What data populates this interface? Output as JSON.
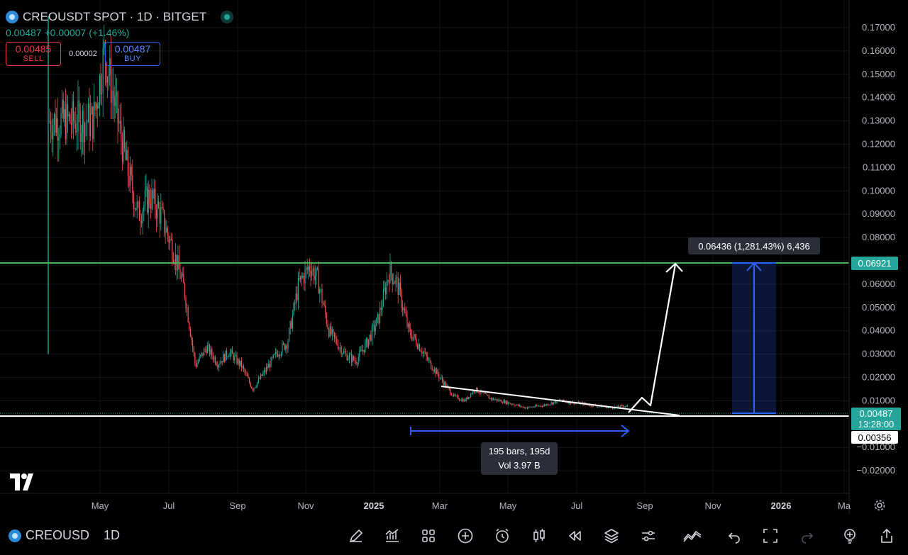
{
  "header": {
    "title": "CREOUSDT SPOT · 1D · BITGET",
    "last_price": "0.00487",
    "change": "+0.00007",
    "change_pct": "(+1.46%)",
    "sell_price": "0.00485",
    "sell_label": "SELL",
    "spread": "0.00002",
    "buy_price": "0.00487",
    "buy_label": "BUY"
  },
  "price_axis": {
    "ticks": [
      "0.17000",
      "0.16000",
      "0.15000",
      "0.14000",
      "0.13000",
      "0.12000",
      "0.11000",
      "0.10000",
      "0.09000",
      "0.08000",
      "0.07000",
      "0.06000",
      "0.05000",
      "0.04000",
      "0.03000",
      "0.02000",
      "0.01000",
      "−0.01000",
      "−0.02000"
    ],
    "tick_values": [
      0.17,
      0.16,
      0.15,
      0.14,
      0.13,
      0.12,
      0.11,
      0.1,
      0.09,
      0.08,
      0.07,
      0.06,
      0.05,
      0.04,
      0.03,
      0.02,
      0.01,
      -0.01,
      -0.02
    ],
    "label_target": "0.06921",
    "label_current": "0.00487",
    "label_countdown": "13:28:00",
    "label_support": "0.00356"
  },
  "time_axis": {
    "labels": [
      "May",
      "Jul",
      "Sep",
      "Nov",
      "2025",
      "Mar",
      "May",
      "Jul",
      "Sep",
      "Nov",
      "2026",
      "Ma"
    ]
  },
  "annotations": {
    "measure_label": "0.06436 (1,281.43%) 6,436",
    "range_bars": "195 bars, 195d",
    "range_vol": "Vol 3.97 B"
  },
  "colors": {
    "up": "#26a69a",
    "down": "#ef5350",
    "target_line": "#4caf50",
    "measure_blue": "#2962ff",
    "white": "#ffffff"
  },
  "chart_data": {
    "type": "candlestick",
    "title": "CREOUSDT SPOT · 1D · BITGET",
    "ylim": [
      -0.025,
      0.175
    ],
    "horizontal_lines": [
      {
        "value": 0.06921
      },
      {
        "value": 0.00356
      }
    ],
    "price_path": [
      {
        "x": "2024-03-26",
        "y": 0.13
      },
      {
        "x": "2024-04-05",
        "y": 0.16
      },
      {
        "x": "2024-04-15",
        "y": 0.135
      },
      {
        "x": "2024-04-25",
        "y": 0.11
      },
      {
        "x": "2024-05-05",
        "y": 0.09
      },
      {
        "x": "2024-05-15",
        "y": 0.098
      },
      {
        "x": "2024-05-25",
        "y": 0.09
      },
      {
        "x": "2024-06-05",
        "y": 0.075
      },
      {
        "x": "2024-06-15",
        "y": 0.058
      },
      {
        "x": "2024-06-25",
        "y": 0.025
      },
      {
        "x": "2024-07-05",
        "y": 0.033
      },
      {
        "x": "2024-07-15",
        "y": 0.026
      },
      {
        "x": "2024-07-25",
        "y": 0.031
      },
      {
        "x": "2024-08-05",
        "y": 0.025
      },
      {
        "x": "2024-08-15",
        "y": 0.015
      },
      {
        "x": "2024-08-25",
        "y": 0.022
      },
      {
        "x": "2024-09-05",
        "y": 0.03
      },
      {
        "x": "2024-09-15",
        "y": 0.035
      },
      {
        "x": "2024-09-25",
        "y": 0.06
      },
      {
        "x": "2024-10-05",
        "y": 0.068
      },
      {
        "x": "2024-10-12",
        "y": 0.062
      },
      {
        "x": "2024-10-22",
        "y": 0.04
      },
      {
        "x": "2024-11-05",
        "y": 0.03
      },
      {
        "x": "2024-11-15",
        "y": 0.027
      },
      {
        "x": "2024-11-25",
        "y": 0.035
      },
      {
        "x": "2024-12-05",
        "y": 0.045
      },
      {
        "x": "2024-12-15",
        "y": 0.066
      },
      {
        "x": "2024-12-22",
        "y": 0.06
      },
      {
        "x": "2025-01-01",
        "y": 0.04
      },
      {
        "x": "2025-01-10",
        "y": 0.034
      },
      {
        "x": "2025-01-20",
        "y": 0.026
      },
      {
        "x": "2025-02-01",
        "y": 0.018
      },
      {
        "x": "2025-02-10",
        "y": 0.012
      },
      {
        "x": "2025-02-20",
        "y": 0.01
      },
      {
        "x": "2025-03-01",
        "y": 0.015
      },
      {
        "x": "2025-03-15",
        "y": 0.011
      },
      {
        "x": "2025-04-01",
        "y": 0.009
      },
      {
        "x": "2025-04-15",
        "y": 0.007
      },
      {
        "x": "2025-05-01",
        "y": 0.008
      },
      {
        "x": "2025-05-15",
        "y": 0.01
      },
      {
        "x": "2025-06-01",
        "y": 0.009
      },
      {
        "x": "2025-06-15",
        "y": 0.008
      },
      {
        "x": "2025-07-01",
        "y": 0.007
      },
      {
        "x": "2025-07-15",
        "y": 0.008
      },
      {
        "x": "2025-08-01",
        "y": 0.005
      },
      {
        "x": "2025-08-20",
        "y": 0.00487
      }
    ]
  }
}
